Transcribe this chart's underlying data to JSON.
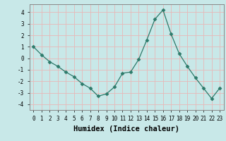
{
  "x": [
    0,
    1,
    2,
    3,
    4,
    5,
    6,
    7,
    8,
    9,
    10,
    11,
    12,
    13,
    14,
    15,
    16,
    17,
    18,
    19,
    20,
    21,
    22,
    23
  ],
  "y": [
    1.0,
    0.3,
    -0.3,
    -0.7,
    -1.2,
    -1.6,
    -2.2,
    -2.6,
    -3.3,
    -3.1,
    -2.5,
    -1.3,
    -1.2,
    -0.1,
    1.6,
    3.4,
    4.2,
    2.1,
    0.4,
    -0.7,
    -1.7,
    -2.6,
    -3.5,
    -2.6
  ],
  "line_color": "#2d7a6a",
  "marker": "D",
  "marker_size": 2.5,
  "bg_color": "#c8e8e8",
  "grid_color": "#e8b8b8",
  "xlabel": "Humidex (Indice chaleur)",
  "ylim": [
    -4.5,
    4.7
  ],
  "xlim": [
    -0.5,
    23.5
  ],
  "yticks": [
    -4,
    -3,
    -2,
    -1,
    0,
    1,
    2,
    3,
    4
  ],
  "xticks": [
    0,
    1,
    2,
    3,
    4,
    5,
    6,
    7,
    8,
    9,
    10,
    11,
    12,
    13,
    14,
    15,
    16,
    17,
    18,
    19,
    20,
    21,
    22,
    23
  ],
  "tick_fontsize": 5.5,
  "xlabel_fontsize": 7.5,
  "xlabel_fontweight": "bold",
  "spine_color": "#888888"
}
